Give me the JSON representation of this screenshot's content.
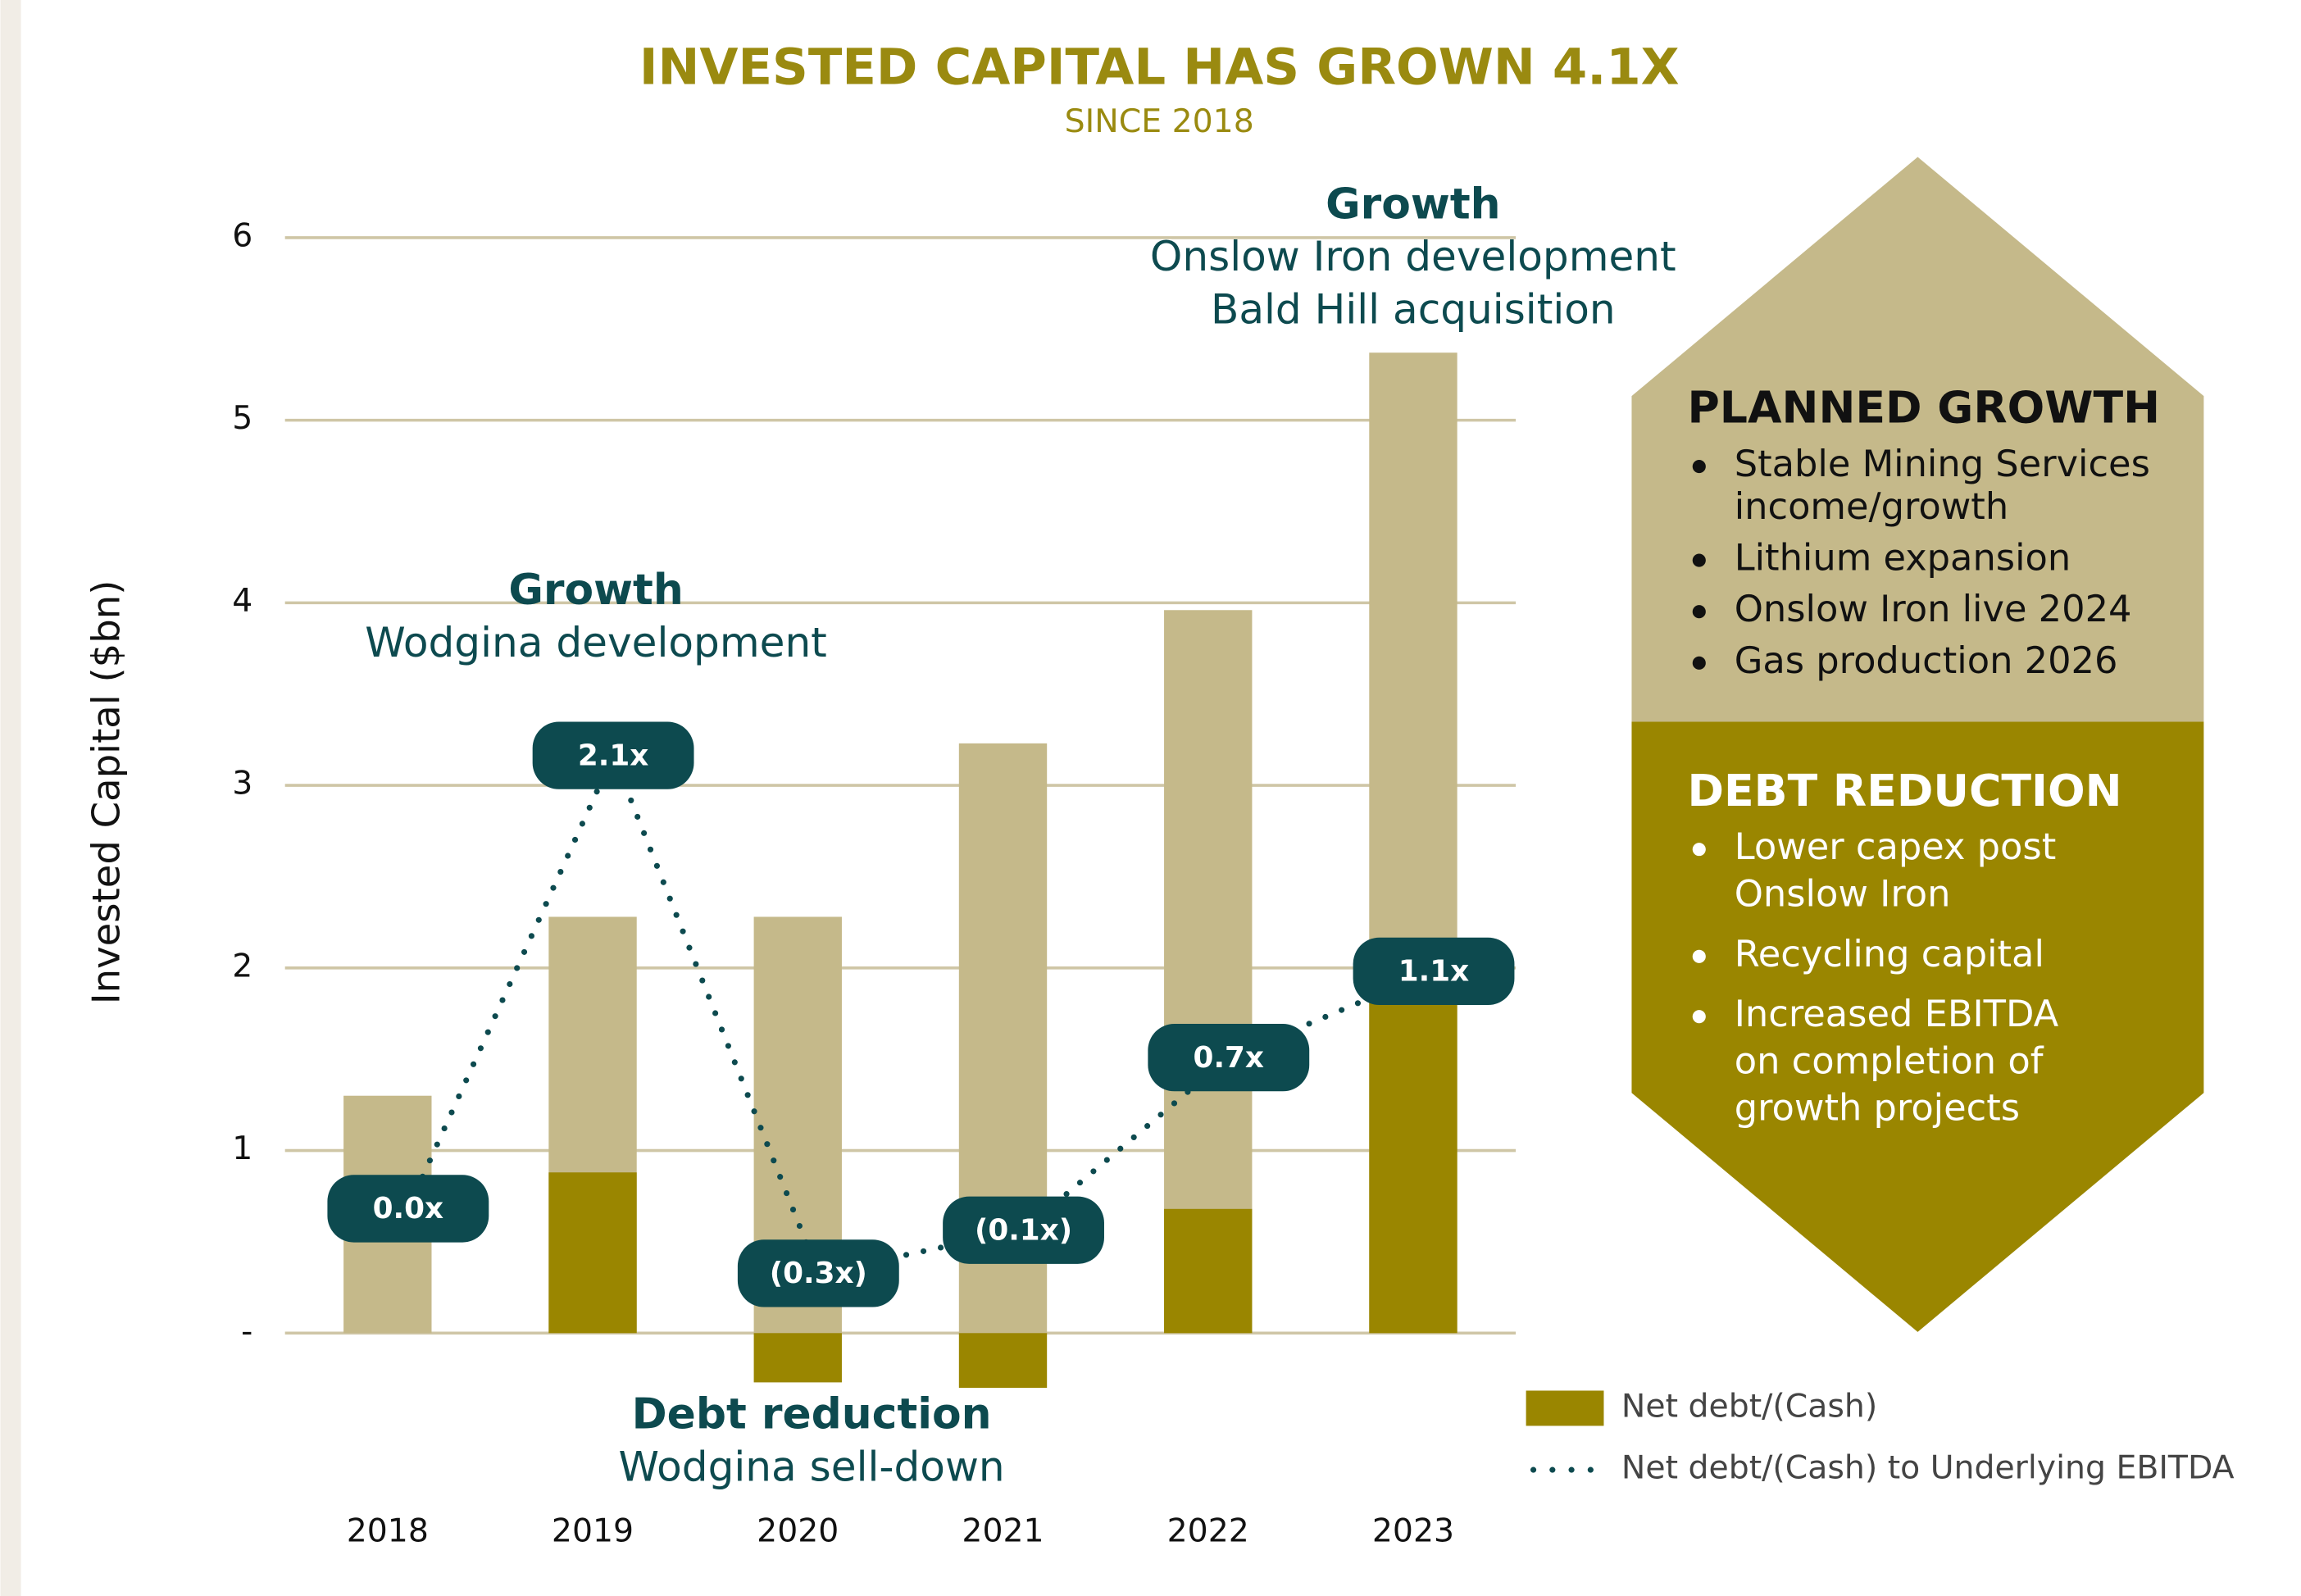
{
  "chart_data": {
    "type": "bar",
    "title": "INVESTED CAPITAL HAS GROWN 4.1X",
    "subtitle": "SINCE 2018",
    "y_label": "Invested Capital ($bn)",
    "categories": [
      "2018",
      "2019",
      "2020",
      "2021",
      "2022",
      "2023"
    ],
    "series": [
      {
        "color": "#c5b98a",
        "values": [
          1.3,
          2.28,
          2.28,
          3.23,
          3.96,
          5.37
        ]
      },
      {
        "name": "Net debt/(Cash)",
        "color": "#9a8600",
        "values": [
          0,
          0.88,
          -0.27,
          -0.3,
          0.68,
          1.83
        ]
      },
      {
        "name": "Net debt/(Cash) to Underlying EBITDA",
        "color": "#0d4a4f",
        "axis": "y2",
        "values": [
          0.0,
          2.1,
          -0.3,
          -0.1,
          0.7,
          1.1
        ],
        "value_labels": [
          "0.0x",
          "2.1x",
          "(0.3x)",
          "(0.1x)",
          "0.7x",
          "1.1x"
        ]
      }
    ],
    "ylim": [
      -0.5,
      6
    ],
    "yticks": [
      {
        "value": 0,
        "label": "-"
      },
      1,
      2,
      3,
      4,
      5,
      6
    ],
    "grid": true,
    "y2lim": [
      -1,
      4.5
    ],
    "annotations": [
      {
        "title": "Growth",
        "lines": [
          "Wodgina development"
        ]
      },
      {
        "title": "Debt reduction",
        "lines": [
          "Wodgina sell-down"
        ]
      },
      {
        "title": "Growth",
        "lines": [
          "Onslow Iron development",
          "Bald Hill acquisition"
        ]
      }
    ],
    "panels": [
      {
        "title": "PLANNED GROWTH",
        "items": [
          [
            "Stable Mining Services",
            "income/growth"
          ],
          [
            "Lithium expansion"
          ],
          [
            "Onslow Iron live 2024"
          ],
          [
            "Gas production 2026"
          ]
        ]
      },
      {
        "title": "DEBT REDUCTION",
        "items": [
          [
            "Lower capex post",
            "Onslow Iron"
          ],
          [
            "Recycling capital"
          ],
          [
            "Increased EBITDA",
            "on completion of",
            "growth projects"
          ]
        ]
      }
    ]
  }
}
